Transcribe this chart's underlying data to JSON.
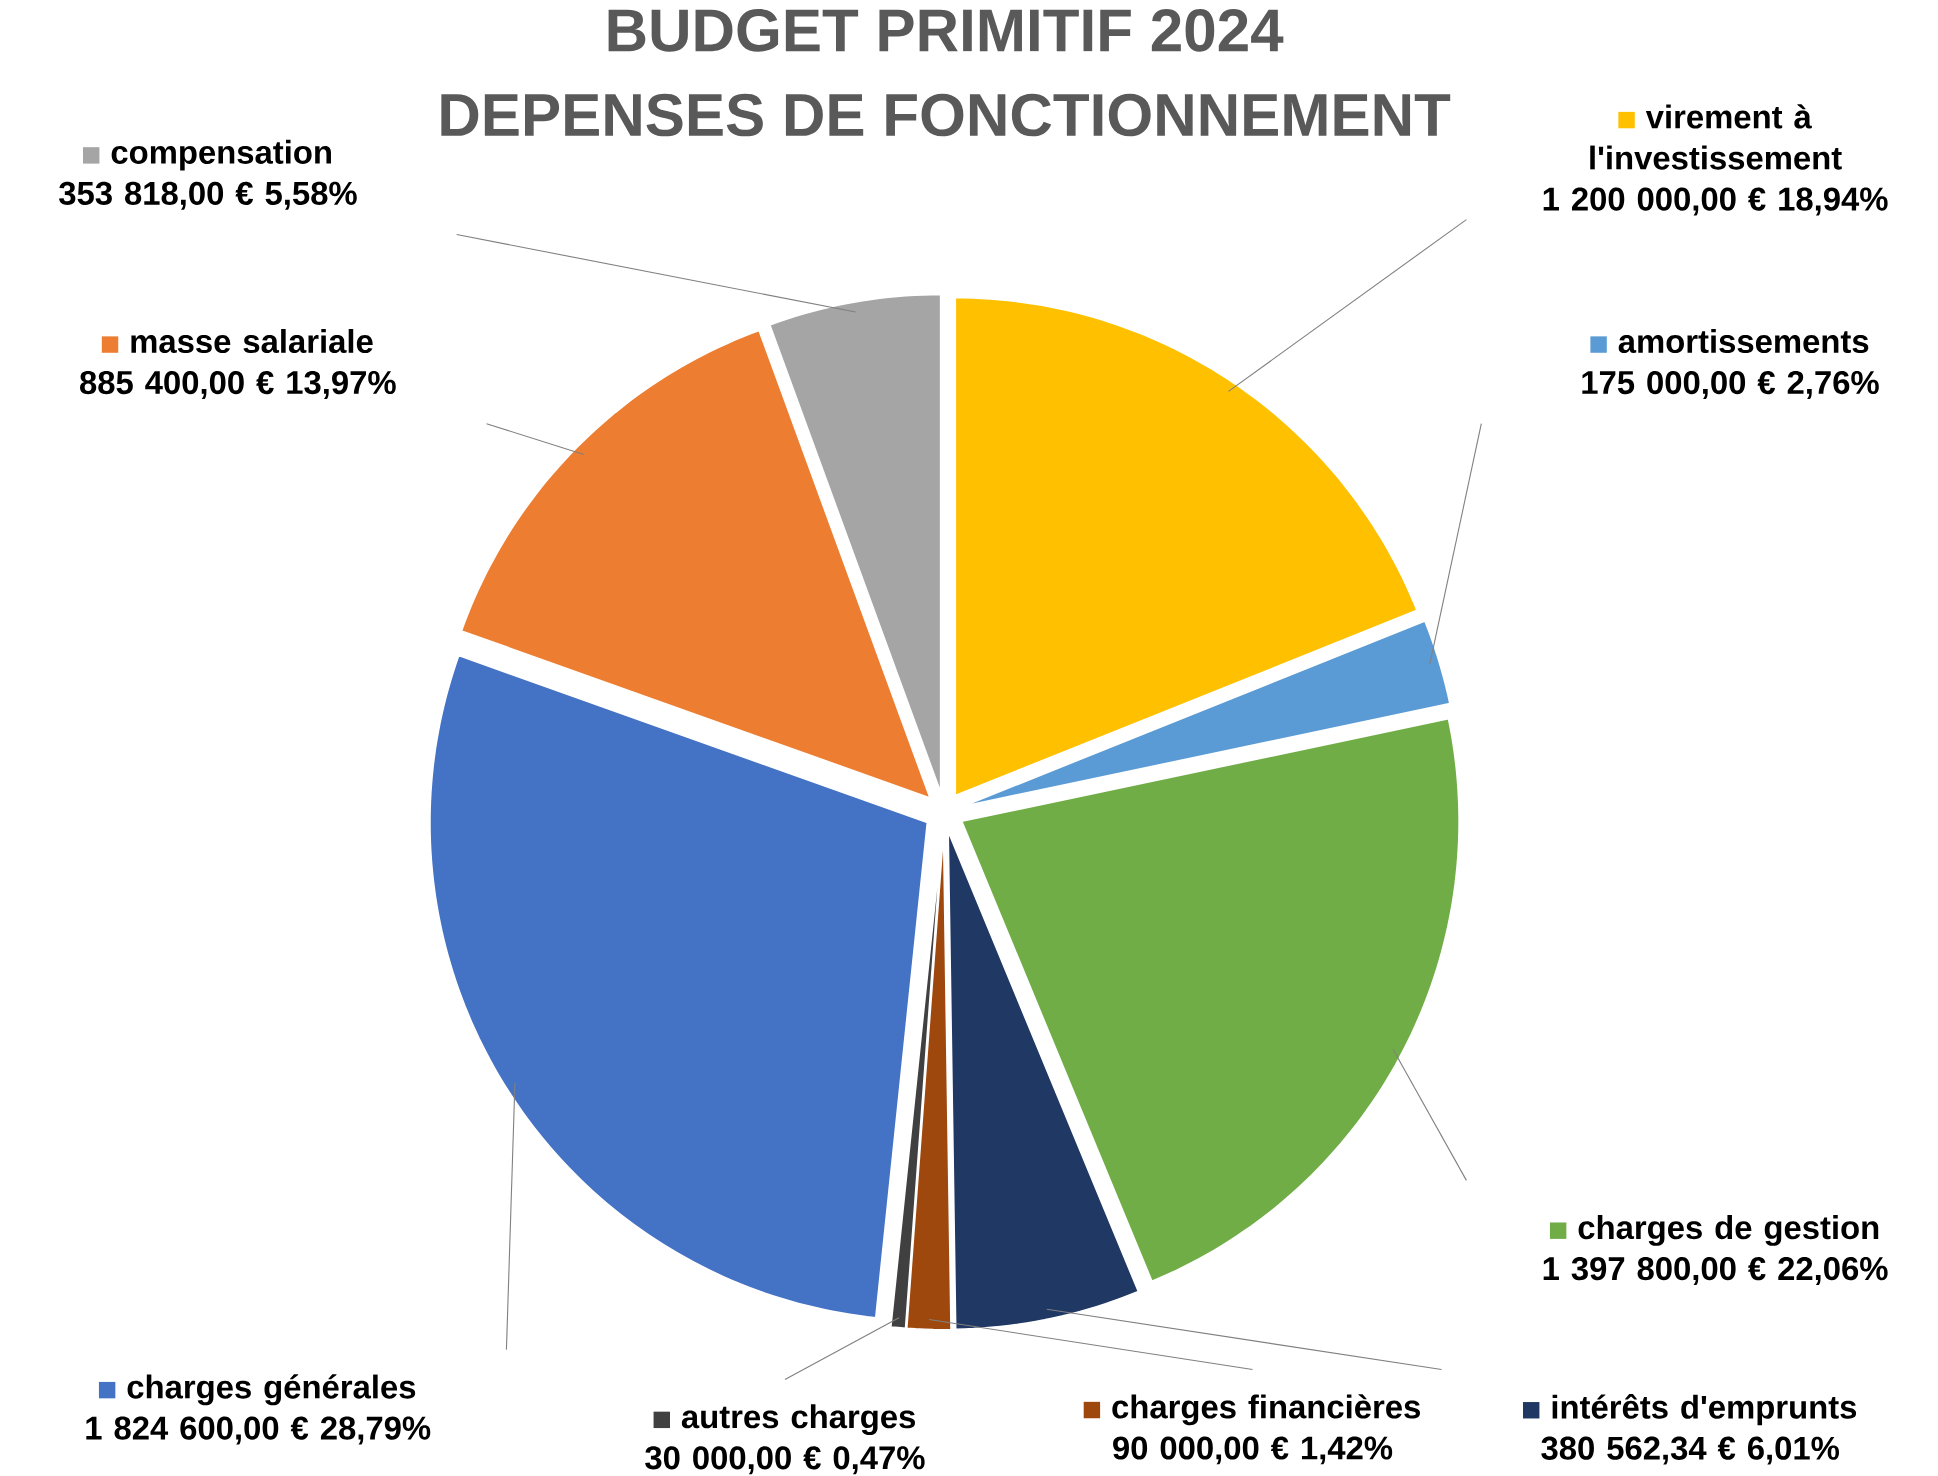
{
  "chart_data": {
    "type": "pie",
    "title": "BUDGET PRIMITIF 2024",
    "subtitle": "DEPENSES DE FONCTIONNEMENT",
    "categories": [
      "virement à l'investissement",
      "amortissements",
      "charges de gestion",
      "intérêts d'emprunts",
      "charges financières",
      "autres charges",
      "charges générales",
      "masse salariale",
      "compensation"
    ],
    "values": [
      1200000,
      175000,
      1397800,
      380562.34,
      90000,
      30000,
      1824600,
      885400,
      353818
    ],
    "value_labels": [
      "1 200 000,00 €  18,94%",
      "175 000,00 € 2,76%",
      "1 397 800,00 €  22,06%",
      "380 562,34 €  6,01%",
      "90 000,00 €  1,42%",
      "30 000,00 €  0,47%",
      "1 824 600,00 € 28,79%",
      "885 400,00 €  13,97%",
      "353 818,00 €  5,58%"
    ],
    "colors": [
      "#ffc000",
      "#5b9bd5",
      "#70ad47",
      "#203864",
      "#9e480e",
      "#404040",
      "#4472c4",
      "#ed7d31",
      "#a5a5a5"
    ],
    "legend": "top right"
  }
}
